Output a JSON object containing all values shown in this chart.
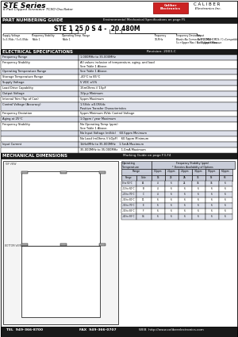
{
  "title_series": "STE Series",
  "title_desc": "6 Pad Clipped Sinewave TCXO Oscillator",
  "company_line1": "C A L I B E R",
  "company_line2": "Electronics Inc.",
  "logo_text": "Caliber\nElectronics",
  "section1_title": "PART NUMBERING GUIDE",
  "section1_right": "Environmental Mechanical Specifications on page F5",
  "part_number": "STE 1 25 0 S 4 -  20.480M",
  "pn_left_labels": [
    "Supply Voltage\n3=3.3Vdc / 5=5.0Vdc",
    "Frequency Stability\nTable 1",
    "Operating Temp. Range\nTable 1"
  ],
  "pn_right_labels": [
    "Frequency\n10-MHz",
    "Frequency Deviation\nBlank=No Connection (TCMO)\n5=+Upper Max / 6=+/-Upper Max.",
    "Output\nT=TTL / M=HCMOS / C=Compatible /\nS=Clipped Sinewave"
  ],
  "section2_title": "ELECTRICAL SPECIFICATIONS",
  "section2_right": "Revision: 2003-C",
  "elec_specs": [
    [
      "Frequency Range",
      "1.000MHz to 35.000MHz"
    ],
    [
      "Frequency Stability",
      "All values inclusive of temperature, aging, and load\nSee Table 1 Above."
    ],
    [
      "Operating Temperature Range",
      "See Table 1 Above."
    ],
    [
      "Storage Temperature Range",
      "-40°C to 85°C"
    ],
    [
      "Supply Voltage",
      "5 VDC ±5%"
    ],
    [
      "Load Drive Capability",
      "15mOhms // 15pF"
    ],
    [
      "Output Voltage",
      "1Vp-p Minimum"
    ],
    [
      "Internal Trim (Top of Can)",
      "5ppm Maximum"
    ],
    [
      "Control Voltage (Accuracy)",
      "1.5Vdc ±0.05Vdc\nPositive Transfer Characteristics"
    ],
    [
      "Frequency Deviation",
      "5ppm Minimum 0Vdc Control Voltage"
    ],
    [
      "Aging at 25°C",
      "1.0ppm / year Maximum"
    ],
    [
      "Frequency Stability",
      "No Operating Temp (ppm)\nSee Table 1 Above."
    ],
    [
      "",
      "No Input Voltage (mVdc)    60.5ppm Minimum"
    ],
    [
      "",
      "No Load (mOhms // kOpF)    60.5ppm Minimum"
    ],
    [
      "Input Current",
      "1kHz/MHz to 35.000MHz    1.5mA Maximum"
    ],
    [
      "",
      "35.000MHz to 35.000MHz    1.0mA Maximum"
    ]
  ],
  "section3_title": "MECHANICAL DIMENSIONS",
  "section3_right": "Marking Guide on page F3-F4",
  "freq_table_header1": "Operating\nTemperature",
  "freq_table_header2": "Frequency Stability (ppm)\n* Denotes Availability of Options",
  "freq_table_subcols": [
    "Range",
    "Code",
    "1S",
    "2S",
    "2A",
    "3S",
    "5S",
    "6S"
  ],
  "freq_table_col_labels": [
    "1.0ppm",
    "2.0ppm",
    "2.5ppm",
    "3.0ppm",
    "5.0ppm",
    "6.0ppm"
  ],
  "freq_table_rows": [
    [
      "0 to 50°C",
      "A1",
      "4",
      "6",
      "24",
      "36",
      "36",
      "6"
    ],
    [
      "-10 to 60°C",
      "B",
      "4",
      "6",
      "6",
      "6",
      "6",
      "6"
    ],
    [
      "-20 to 70°C",
      "C",
      "4",
      "6",
      "6",
      "6",
      "6",
      "6"
    ],
    [
      "-30 to 80°C",
      "D1",
      "6",
      "6",
      "6",
      "6",
      "6",
      "6"
    ],
    [
      "-30 to 70°C",
      "E",
      "6",
      "6",
      "6",
      "6",
      "6",
      "6"
    ],
    [
      "-30 to 85°C",
      "F",
      "6",
      "6",
      "6",
      "6",
      "6",
      "6"
    ],
    [
      "-40 to 85°C",
      "G1",
      "6",
      "6",
      "6",
      "6",
      "6",
      "6"
    ]
  ],
  "footer_tel": "TEL  949-366-8700",
  "footer_fax": "FAX  949-366-0707",
  "footer_web": "WEB  http://www.caliberelectronics.com",
  "bg_color": "#ffffff",
  "dark_bg": "#1a1a1a",
  "row_alt1": "#dde0ea",
  "row_alt2": "#ffffff",
  "table_hdr_bg": "#c8ccd8",
  "logo_red": "#cc2222"
}
